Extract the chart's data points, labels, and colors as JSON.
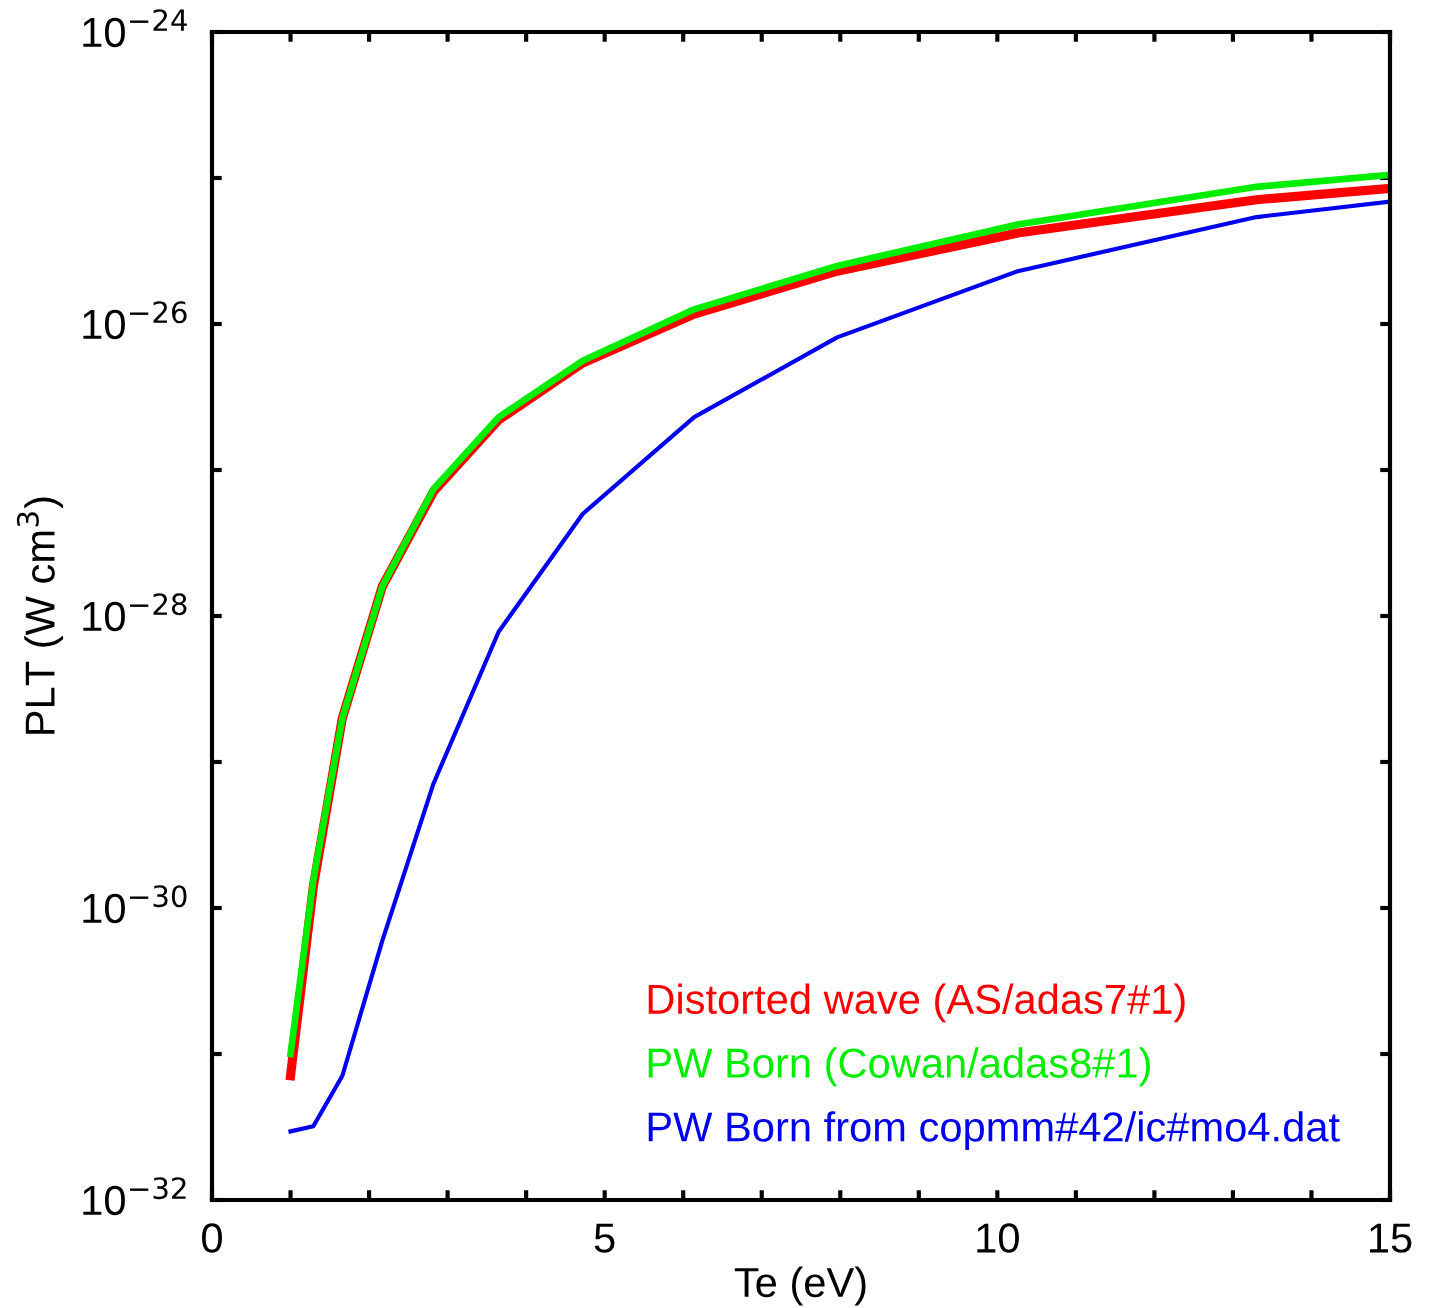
{
  "chart_data": {
    "type": "line",
    "xlabel": "Te (eV)",
    "ylabel": "PLT (W cm$^{3}$)",
    "log": "y",
    "xlim": [
      0,
      15
    ],
    "ylim": [
      1e-32,
      1e-24
    ],
    "xticks": [
      0,
      {
        "value": 1,
        "label": null
      },
      {
        "value": 2,
        "label": null
      },
      {
        "value": 3,
        "label": null
      },
      {
        "value": 4,
        "label": null
      },
      5,
      {
        "value": 6,
        "label": null
      },
      {
        "value": 7,
        "label": null
      },
      {
        "value": 8,
        "label": null
      },
      {
        "value": 9,
        "label": null
      },
      10,
      {
        "value": 11,
        "label": null
      },
      {
        "value": 12,
        "label": null
      },
      {
        "value": 13,
        "label": null
      },
      {
        "value": 14,
        "label": null
      },
      15
    ],
    "yticks": [
      {
        "value": 1e-32,
        "label": "10$^{−32}$"
      },
      {
        "value": 1e-31,
        "label": null
      },
      {
        "value": 1e-30,
        "label": "10$^{−30}$"
      },
      {
        "value": 1e-29,
        "label": null
      },
      {
        "value": 1e-28,
        "label": "10$^{−28}$"
      },
      {
        "value": 1e-27,
        "label": null
      },
      {
        "value": 1e-26,
        "label": "10$^{−26}$"
      },
      {
        "value": 1e-25,
        "label": null
      },
      {
        "value": 1e-24,
        "label": "10$^{−24}$"
      }
    ],
    "x": [
      1,
      1.29,
      1.66,
      2.17,
      2.82,
      3.65,
      4.72,
      6.14,
      7.96,
      10.26,
      13.3,
      15
    ],
    "grid": false,
    "legend": "bottom right",
    "marker": "none",
    "line_style": "solid",
    "series": [
      {
        "name": "Distorted wave (AS/adas7#1)",
        "color": "#ff0000",
        "values": [
          7.1e-32,
          1.4e-30,
          2e-29,
          1.6e-28,
          7.1e-28,
          2.2e-27,
          5.4e-27,
          1.17e-26,
          2.3e-26,
          4.2e-26,
          7.1e-26,
          8.5e-26
        ]
      },
      {
        "name": "PW Born (Cowan/adas8#1)",
        "color": "#00ee00",
        "values": [
          1e-31,
          1.55e-30,
          2e-29,
          1.6e-28,
          7.4e-28,
          2.3e-27,
          5.6e-27,
          1.26e-26,
          2.5e-26,
          4.8e-26,
          8.7e-26,
          1.05e-25
        ]
      },
      {
        "name": "PW Born from copmm#42/ic#mo4.dat",
        "color": "#0000ee",
        "values": [
          2.95e-32,
          3.2e-32,
          7.1e-32,
          6e-31,
          7.1e-30,
          7.8e-29,
          5e-28,
          2.3e-27,
          8.1e-27,
          2.3e-26,
          5.4e-26,
          6.9e-26
        ]
      }
    ]
  }
}
